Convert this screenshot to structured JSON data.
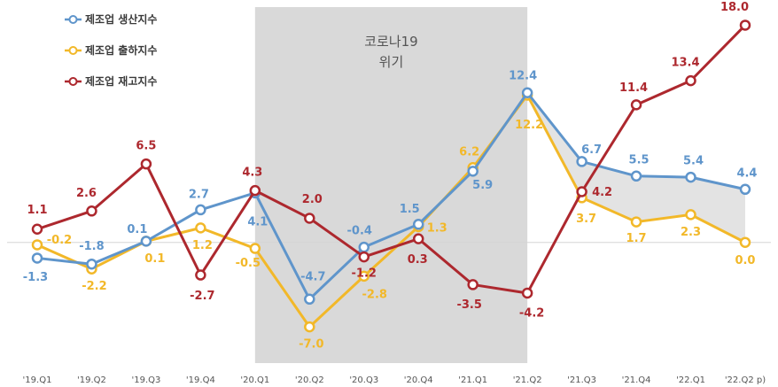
{
  "chart_data": {
    "type": "line",
    "categories": [
      "'19.Q1",
      "'19.Q2",
      "'19.Q3",
      "'19.Q4",
      "'20.Q1",
      "'20.Q2",
      "'20.Q3",
      "'20.Q4",
      "'21.Q1",
      "'21.Q2",
      "'21.Q3",
      "'21.Q4",
      "'22.Q1",
      "'22.Q2 p)"
    ],
    "ylim": [
      -10,
      19.5
    ],
    "grid": false,
    "legend": "top-left",
    "data_labels": true,
    "series": [
      {
        "name": "제조업 생산지수",
        "color": "#5f95cb",
        "values": [
          -1.3,
          -1.8,
          0.1,
          2.7,
          4.1,
          -4.7,
          -0.4,
          1.5,
          5.9,
          12.4,
          6.7,
          5.5,
          5.4,
          4.4
        ]
      },
      {
        "name": "제조업 출하지수",
        "color": "#f2b829",
        "values": [
          -0.2,
          -2.2,
          0.1,
          1.2,
          -0.5,
          -7.0,
          -2.8,
          1.3,
          6.2,
          12.2,
          3.7,
          1.7,
          2.3,
          0.0
        ]
      },
      {
        "name": "제조업 재고지수",
        "color": "#ad282e",
        "values": [
          1.1,
          2.6,
          6.5,
          -2.7,
          4.3,
          2.0,
          -1.2,
          0.3,
          -3.5,
          -4.2,
          4.2,
          11.4,
          13.4,
          18.0
        ]
      }
    ],
    "shaded_period": {
      "from": "'20.Q1",
      "to": "'21.Q2",
      "label": [
        "코로나19",
        "위기"
      ],
      "color": "#d9d9d9"
    },
    "gap_fill": {
      "between_series": [
        0,
        1
      ],
      "from": "'21.Q2",
      "to": "'22.Q2 p)",
      "color": "#e3e3e3"
    }
  }
}
